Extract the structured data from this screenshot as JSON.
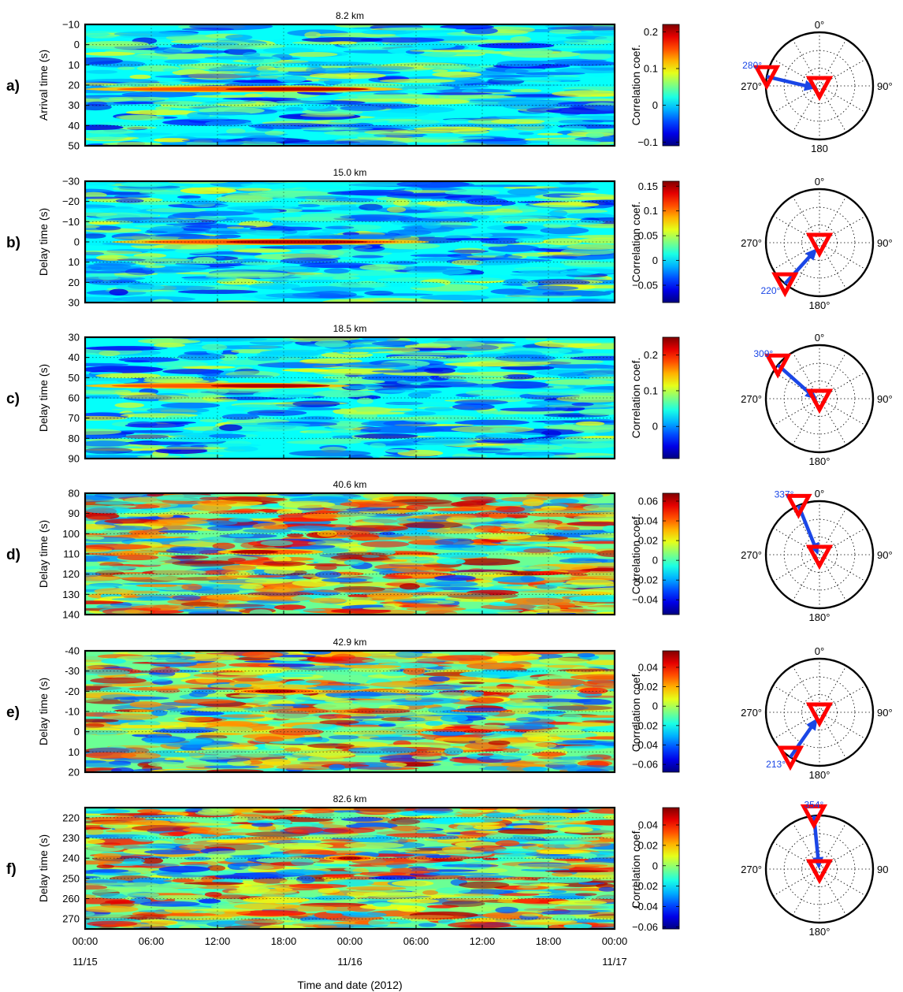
{
  "chart_data": [
    {
      "type": "heatmap",
      "panel_label": "a)",
      "title": "8.2 km",
      "ylabel": "Arrival time (s)",
      "ylim": [
        -10,
        50
      ],
      "yticks": [
        "−10",
        "0",
        "10",
        "20",
        "30",
        "40",
        "50"
      ],
      "cb_label": "Correlation coef.",
      "cb_range": [
        -0.11,
        0.22
      ],
      "cb_ticks": [
        "0.2",
        "0.1",
        "0",
        "−0.1"
      ],
      "feature": {
        "delay": 22,
        "from": 0.0,
        "to": 0.6,
        "peak": 0.4
      },
      "rose": {
        "azimuth_label": "280°",
        "azimuth_deg": 280,
        "labels": {
          "top": "0°",
          "right": "90°",
          "bottom": "180",
          "left": "270°"
        }
      }
    },
    {
      "type": "heatmap",
      "panel_label": "b)",
      "title": "15.0 km",
      "ylabel": "Delay time (s)",
      "ylim": [
        -30,
        30
      ],
      "yticks": [
        "−30",
        "−20",
        "−10",
        "0",
        "10",
        "20",
        "30"
      ],
      "cb_label": "Correlation coef.",
      "cb_range": [
        -0.085,
        0.16
      ],
      "cb_ticks": [
        "0.15",
        "0.1",
        "0.05",
        "0",
        "−0.05"
      ],
      "feature": {
        "delay": 0,
        "from": 0.05,
        "to": 0.65,
        "peak": 0.4
      },
      "rose": {
        "azimuth_label": "220°",
        "azimuth_deg": 220,
        "labels": {
          "top": "0°",
          "right": "90°",
          "bottom": "180°",
          "left": "270°"
        }
      }
    },
    {
      "type": "heatmap",
      "panel_label": "c)",
      "title": "18.5 km",
      "ylabel": "Delay time (s)",
      "ylim": [
        30,
        90
      ],
      "yticks": [
        "30",
        "40",
        "50",
        "60",
        "70",
        "80",
        "90"
      ],
      "cb_label": "Correlation coef.",
      "cb_range": [
        -0.09,
        0.25
      ],
      "cb_ticks": [
        "0.2",
        "0.1",
        "0"
      ],
      "feature": {
        "delay": 54,
        "from": 0.0,
        "to": 0.5,
        "peak": 0.35
      },
      "rose": {
        "azimuth_label": "309°",
        "azimuth_deg": 309,
        "labels": {
          "top": "0°",
          "right": "90°",
          "bottom": "180°",
          "left": "270°"
        }
      }
    },
    {
      "type": "heatmap",
      "panel_label": "d)",
      "title": "40.6 km",
      "ylabel": "Delay time (s)",
      "ylim": [
        80,
        140
      ],
      "yticks": [
        "80",
        "90",
        "100",
        "110",
        "120",
        "130",
        "140"
      ],
      "cb_label": "Correlation coef.",
      "cb_range": [
        -0.055,
        0.068
      ],
      "cb_ticks": [
        "0.06",
        "0.04",
        "0.02",
        "0",
        "−0.02",
        "−0.04"
      ],
      "feature": {
        "delay": 109,
        "from": 0.25,
        "to": 0.45,
        "peak": 0.32
      },
      "rose": {
        "azimuth_label": "337°",
        "azimuth_deg": 337,
        "labels": {
          "top": "0°",
          "right": "90°",
          "bottom": "180°",
          "left": "270°"
        }
      }
    },
    {
      "type": "heatmap",
      "panel_label": "e)",
      "title": "42.9 km",
      "ylabel": "Delay time (s)",
      "ylim": [
        -40,
        20
      ],
      "yticks": [
        "-40",
        "-30",
        "-20",
        "-10",
        "0",
        "10",
        "20"
      ],
      "cb_label": "Correlation coef.",
      "cb_range": [
        -0.068,
        0.057
      ],
      "cb_ticks": [
        "0.04",
        "0.02",
        "0",
        "−0.02",
        "−0.04",
        "−0.06"
      ],
      "feature": {
        "delay": -20,
        "from": 0.28,
        "to": 0.45,
        "peak": 0.36
      },
      "rose": {
        "azimuth_label": "213°",
        "azimuth_deg": 213,
        "labels": {
          "top": "0°",
          "right": "90°",
          "bottom": "180°",
          "left": "270°"
        }
      }
    },
    {
      "type": "heatmap",
      "panel_label": "f)",
      "title": "82.6 km",
      "ylabel": "Delay time (s)",
      "ylim": [
        215,
        275
      ],
      "yticks": [
        "220",
        "230",
        "240",
        "250",
        "260",
        "270"
      ],
      "cb_label": "Correlation coef.",
      "cb_range": [
        -0.062,
        0.057
      ],
      "cb_ticks": [
        "0.04",
        "0.02",
        "0",
        "−0.02",
        "−0.04",
        "−0.06"
      ],
      "feature": {
        "delay": 240,
        "from": 0.45,
        "to": 0.55,
        "peak": 0.5
      },
      "rose": {
        "azimuth_label": "354°",
        "azimuth_deg": 354,
        "labels": {
          "top": "",
          "right": "90",
          "bottom": "180°",
          "left": "270°"
        }
      }
    }
  ],
  "x_axis": {
    "xlabel": "Time and date (2012)",
    "tick_labels": [
      "00:00",
      "06:00",
      "12:00",
      "18:00",
      "00:00",
      "06:00",
      "12:00",
      "18:00",
      "00:00"
    ],
    "date_labels": [
      {
        "text": "11/15",
        "tick": 0
      },
      {
        "text": "11/16",
        "tick": 4
      },
      {
        "text": "11/17",
        "tick": 8
      }
    ]
  },
  "colors": {
    "colormap": "jet",
    "arrow": "#1a46e6",
    "station_marker": "#ff0000",
    "azimuth_text": "#1a46e6"
  }
}
